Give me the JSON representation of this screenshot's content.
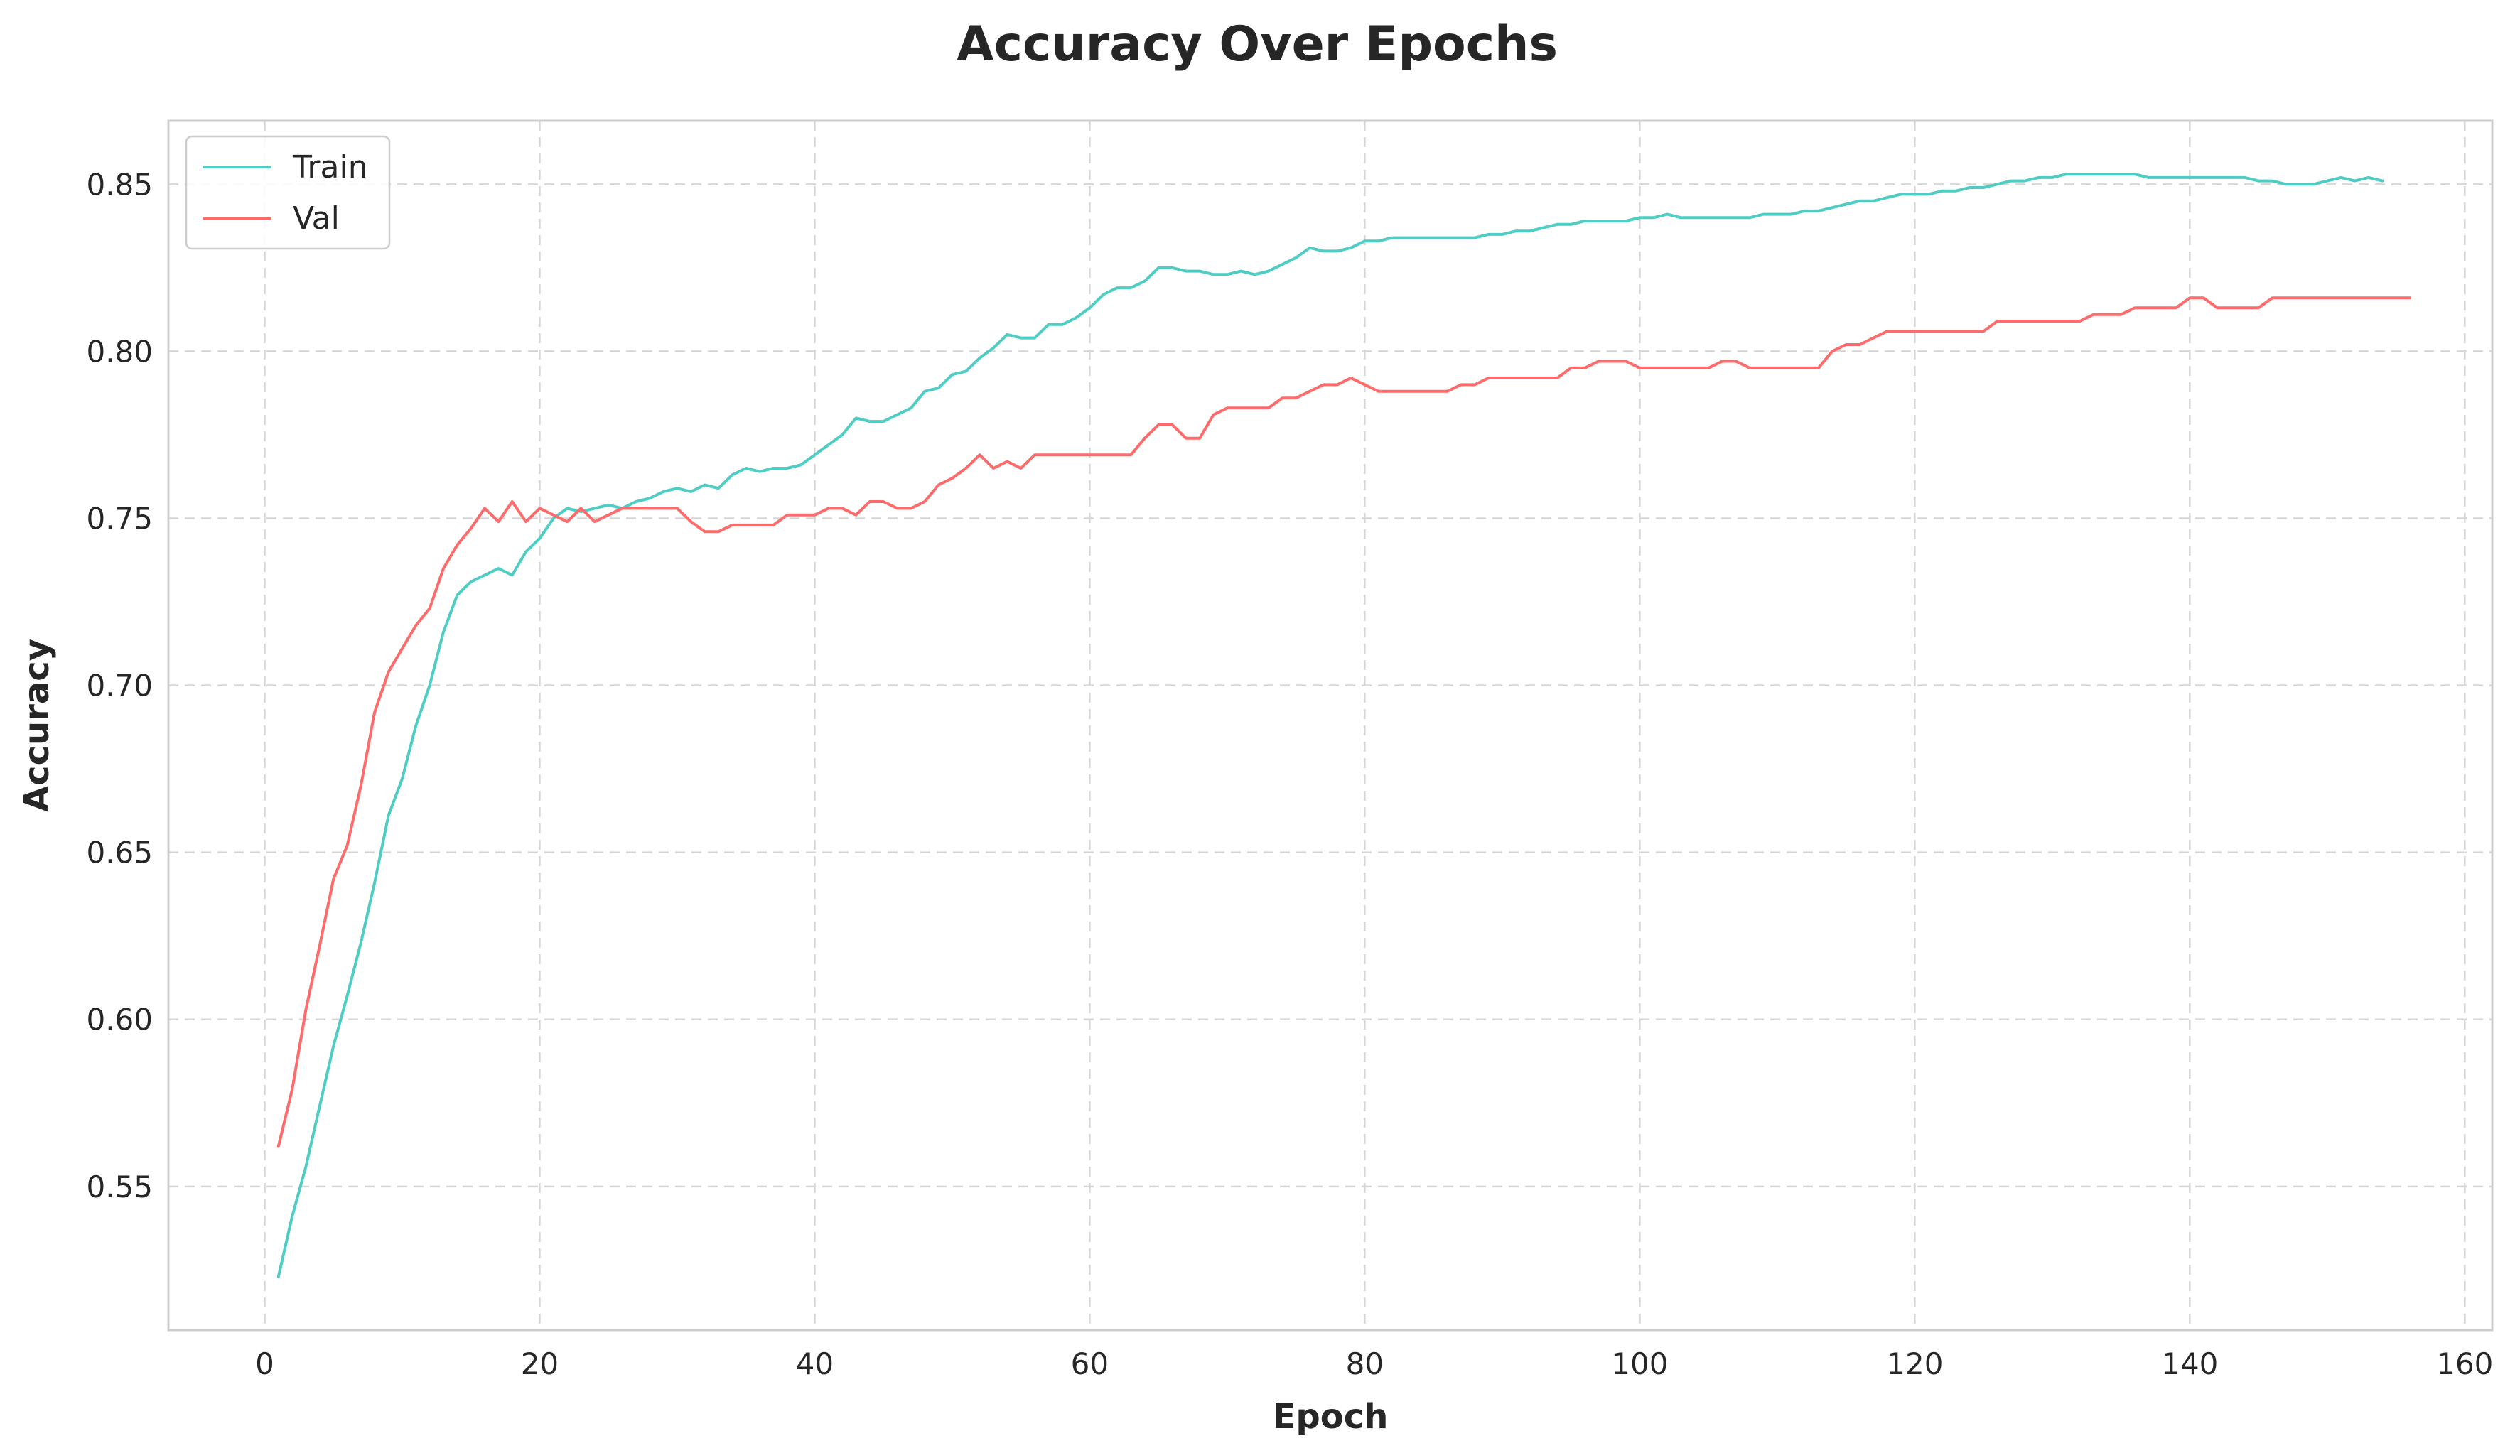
{
  "colors": {
    "train": "#4ECDC4",
    "val": "#FF6B6B"
  },
  "chart_data": {
    "type": "line",
    "title": "Accuracy Over Epochs",
    "xlabel": "Epoch",
    "ylabel": "Accuracy",
    "xlim": [
      -7,
      162
    ],
    "ylim": [
      0.507,
      0.869
    ],
    "xticks": [
      0,
      20,
      40,
      60,
      80,
      100,
      120,
      140,
      160
    ],
    "xtick_labels": [
      "0",
      "20",
      "40",
      "60",
      "80",
      "100",
      "120",
      "140",
      "160"
    ],
    "yticks": [
      0.55,
      0.6,
      0.65,
      0.7,
      0.75,
      0.8,
      0.85
    ],
    "ytick_labels": [
      "0.55",
      "0.60",
      "0.65",
      "0.70",
      "0.75",
      "0.80",
      "0.85"
    ],
    "grid": true,
    "legend_position": "top-left",
    "x": "epochs 1-154",
    "series": [
      {
        "name": "Train",
        "values": [
          0.523,
          0.541,
          0.556,
          0.574,
          0.592,
          0.607,
          0.623,
          0.641,
          0.661,
          0.672,
          0.688,
          0.7,
          0.716,
          0.727,
          0.731,
          0.733,
          0.735,
          0.733,
          0.74,
          0.744,
          0.75,
          0.753,
          0.752,
          0.753,
          0.754,
          0.753,
          0.755,
          0.756,
          0.758,
          0.759,
          0.758,
          0.76,
          0.759,
          0.763,
          0.765,
          0.764,
          0.765,
          0.765,
          0.766,
          0.769,
          0.772,
          0.775,
          0.78,
          0.779,
          0.779,
          0.781,
          0.783,
          0.788,
          0.789,
          0.793,
          0.794,
          0.798,
          0.801,
          0.805,
          0.804,
          0.804,
          0.808,
          0.808,
          0.81,
          0.813,
          0.817,
          0.819,
          0.819,
          0.821,
          0.825,
          0.825,
          0.824,
          0.824,
          0.823,
          0.823,
          0.824,
          0.823,
          0.824,
          0.826,
          0.828,
          0.831,
          0.83,
          0.83,
          0.831,
          0.833,
          0.833,
          0.834,
          0.834,
          0.834,
          0.834,
          0.834,
          0.834,
          0.834,
          0.835,
          0.835,
          0.836,
          0.836,
          0.837,
          0.838,
          0.838,
          0.839,
          0.839,
          0.839,
          0.839,
          0.84,
          0.84,
          0.841,
          0.84,
          0.84,
          0.84,
          0.84,
          0.84,
          0.84,
          0.841,
          0.841,
          0.841,
          0.842,
          0.842,
          0.843,
          0.844,
          0.845,
          0.845,
          0.846,
          0.847,
          0.847,
          0.847,
          0.848,
          0.848,
          0.849,
          0.849,
          0.85,
          0.851,
          0.851,
          0.852,
          0.852,
          0.853,
          0.853,
          0.853,
          0.853,
          0.853,
          0.853,
          0.852,
          0.852,
          0.852,
          0.852,
          0.852,
          0.852,
          0.852,
          0.852,
          0.851,
          0.851,
          0.85,
          0.85,
          0.85,
          0.851,
          0.852,
          0.851,
          0.852,
          0.851
        ]
      },
      {
        "name": "Val",
        "values": [
          0.562,
          0.579,
          0.603,
          0.622,
          0.642,
          0.652,
          0.67,
          0.692,
          0.704,
          0.711,
          0.718,
          0.723,
          0.735,
          0.742,
          0.747,
          0.753,
          0.749,
          0.755,
          0.749,
          0.753,
          0.751,
          0.749,
          0.753,
          0.749,
          0.751,
          0.753,
          0.753,
          0.753,
          0.753,
          0.753,
          0.749,
          0.746,
          0.746,
          0.748,
          0.748,
          0.748,
          0.748,
          0.751,
          0.751,
          0.751,
          0.753,
          0.753,
          0.751,
          0.755,
          0.755,
          0.753,
          0.753,
          0.755,
          0.76,
          0.762,
          0.765,
          0.769,
          0.765,
          0.767,
          0.765,
          0.769,
          0.769,
          0.769,
          0.769,
          0.769,
          0.769,
          0.769,
          0.769,
          0.774,
          0.778,
          0.778,
          0.774,
          0.774,
          0.781,
          0.783,
          0.783,
          0.783,
          0.783,
          0.786,
          0.786,
          0.788,
          0.79,
          0.79,
          0.792,
          0.79,
          0.788,
          0.788,
          0.788,
          0.788,
          0.788,
          0.788,
          0.79,
          0.79,
          0.792,
          0.792,
          0.792,
          0.792,
          0.792,
          0.792,
          0.795,
          0.795,
          0.797,
          0.797,
          0.797,
          0.795,
          0.795,
          0.795,
          0.795,
          0.795,
          0.795,
          0.797,
          0.797,
          0.795,
          0.795,
          0.795,
          0.795,
          0.795,
          0.795,
          0.8,
          0.802,
          0.802,
          0.804,
          0.806,
          0.806,
          0.806,
          0.806,
          0.806,
          0.806,
          0.806,
          0.806,
          0.809,
          0.809,
          0.809,
          0.809,
          0.809,
          0.809,
          0.809,
          0.811,
          0.811,
          0.811,
          0.813,
          0.813,
          0.813,
          0.813,
          0.816,
          0.816,
          0.813,
          0.813,
          0.813,
          0.813,
          0.816,
          0.816,
          0.816,
          0.816,
          0.816,
          0.816,
          0.816,
          0.816,
          0.816,
          0.816,
          0.816
        ]
      }
    ]
  }
}
